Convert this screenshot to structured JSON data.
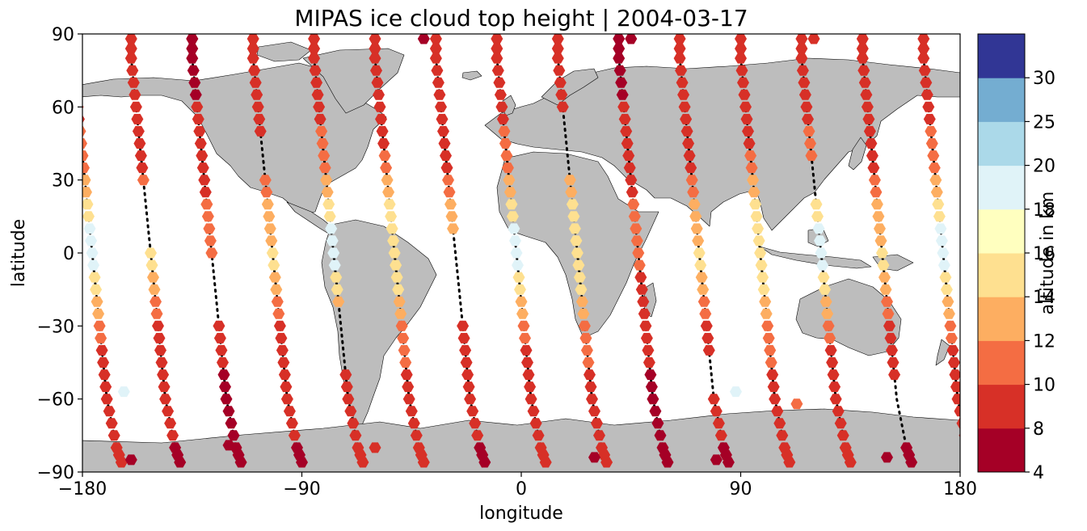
{
  "chart_data": {
    "type": "scatter",
    "title": "MIPAS ice cloud top height | 2004-03-17",
    "xlabel": "longitude",
    "ylabel": "latitude",
    "xlim": [
      -180,
      180
    ],
    "ylim": [
      -90,
      90
    ],
    "xticks": [
      {
        "value": -180,
        "label": "−180"
      },
      {
        "value": -90,
        "label": "−90"
      },
      {
        "value": 0,
        "label": "0"
      },
      {
        "value": 90,
        "label": "90"
      },
      {
        "value": 180,
        "label": "180"
      }
    ],
    "yticks": [
      {
        "value": -90,
        "label": "−90"
      },
      {
        "value": -60,
        "label": "−60"
      },
      {
        "value": -30,
        "label": "−30"
      },
      {
        "value": 0,
        "label": "0"
      },
      {
        "value": 30,
        "label": "30"
      },
      {
        "value": 60,
        "label": "60"
      },
      {
        "value": 90,
        "label": "90"
      }
    ],
    "grid": false,
    "colorbar": {
      "label": "altitude in km",
      "position": "right",
      "bounds": [
        4,
        8,
        10,
        12,
        14,
        16,
        18,
        20,
        25,
        30
      ],
      "tick_labels": [
        "4",
        "8",
        "10",
        "12",
        "14",
        "16",
        "18",
        "20",
        "25",
        "30"
      ],
      "colors": [
        "#a50026",
        "#d73027",
        "#f46d43",
        "#fdae61",
        "#fee090",
        "#ffffbf",
        "#e0f3f8",
        "#abd9e9",
        "#74add1",
        "#313695"
      ]
    },
    "colors": {
      "land": "#bdbdbd",
      "coastline": "#000000",
      "track": "#000000"
    },
    "tracks": [
      {
        "lon0": -178
      },
      {
        "lon0": -154
      },
      {
        "lon0": -129
      },
      {
        "lon0": -104
      },
      {
        "lon0": -79
      },
      {
        "lon0": -54
      },
      {
        "lon0": -29
      },
      {
        "lon0": -4
      },
      {
        "lon0": 21
      },
      {
        "lon0": 46
      },
      {
        "lon0": 71
      },
      {
        "lon0": 96
      },
      {
        "lon0": 121
      },
      {
        "lon0": 146
      },
      {
        "lon0": 171
      }
    ],
    "track_shape": [
      {
        "lat": 88,
        "dlon": -6
      },
      {
        "lat": 80,
        "dlon": -6
      },
      {
        "lat": 70,
        "dlon": -5
      },
      {
        "lat": 60,
        "dlon": -4
      },
      {
        "lat": 50,
        "dlon": -3
      },
      {
        "lat": 40,
        "dlon": -2
      },
      {
        "lat": 30,
        "dlon": -1
      },
      {
        "lat": 20,
        "dlon": 0
      },
      {
        "lat": 10,
        "dlon": 1
      },
      {
        "lat": 0,
        "dlon": 2
      },
      {
        "lat": -10,
        "dlon": 3
      },
      {
        "lat": -20,
        "dlon": 4
      },
      {
        "lat": -30,
        "dlon": 5
      },
      {
        "lat": -40,
        "dlon": 6
      },
      {
        "lat": -50,
        "dlon": 7
      },
      {
        "lat": -60,
        "dlon": 8
      },
      {
        "lat": -70,
        "dlon": 10
      },
      {
        "lat": -80,
        "dlon": 12
      },
      {
        "lat": -86,
        "dlon": 14
      }
    ],
    "profiles": {
      "tropical": [
        9,
        9,
        9,
        9,
        11,
        11,
        13,
        15,
        19,
        19,
        15,
        13,
        11,
        9,
        9,
        9,
        9,
        9,
        9
      ],
      "deep": [
        9,
        9,
        9,
        9,
        9,
        11,
        13,
        15,
        15,
        15,
        15,
        13,
        11,
        11,
        9,
        9,
        9,
        9,
        9
      ],
      "mid": [
        9,
        9,
        9,
        9,
        9,
        9,
        11,
        13,
        13,
        15,
        13,
        11,
        9,
        9,
        9,
        9,
        9,
        6,
        6
      ],
      "low": [
        6,
        6,
        6,
        9,
        9,
        9,
        9,
        11,
        11,
        11,
        9,
        9,
        9,
        9,
        6,
        6,
        6,
        6,
        6
      ]
    },
    "track_profiles": [
      "tropical",
      "mid",
      "low",
      "mid",
      "tropical",
      "deep",
      "mid",
      "tropical",
      "deep",
      "low",
      "mid",
      "deep",
      "tropical",
      "mid",
      "tropical"
    ],
    "track_gaps": [
      [],
      [
        7,
        8
      ],
      [
        10,
        11
      ],
      [
        5
      ],
      [
        12,
        13
      ],
      [],
      [
        9,
        10,
        11
      ],
      [],
      [
        4,
        5
      ],
      [],
      [
        14
      ],
      [],
      [
        6
      ],
      [
        15,
        16
      ],
      []
    ],
    "extra_points": [
      {
        "lon": -163,
        "lat": -57,
        "alt": 19
      },
      {
        "lon": 88,
        "lat": -57,
        "alt": 19
      },
      {
        "lon": 113,
        "lat": -62,
        "alt": 11
      },
      {
        "lon": -160,
        "lat": -85,
        "alt": 6
      },
      {
        "lon": -120,
        "lat": -79,
        "alt": 6
      },
      {
        "lon": -60,
        "lat": -80,
        "alt": 9
      },
      {
        "lon": 30,
        "lat": -84,
        "alt": 6
      },
      {
        "lon": 80,
        "lat": -85,
        "alt": 6
      },
      {
        "lon": 150,
        "lat": -84,
        "alt": 6
      },
      {
        "lon": -135,
        "lat": 88,
        "alt": 6
      },
      {
        "lon": -40,
        "lat": 88,
        "alt": 6
      },
      {
        "lon": 45,
        "lat": 88,
        "alt": 6
      },
      {
        "lon": 120,
        "lat": 88,
        "alt": 9
      }
    ]
  }
}
